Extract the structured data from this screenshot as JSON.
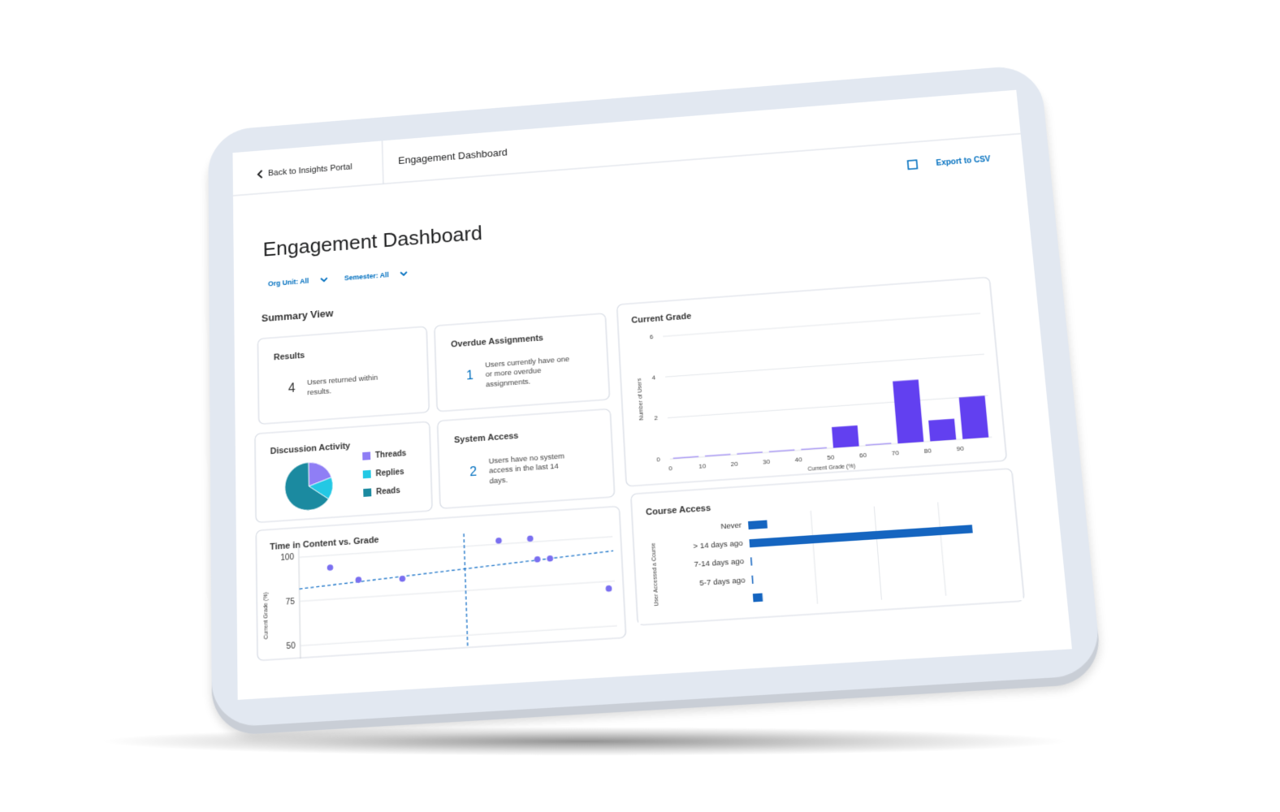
{
  "header": {
    "back": "Back to Insights Portal",
    "title": "Engagement Dashboard",
    "export": "Export to CSV"
  },
  "page": {
    "title": "Engagement Dashboard",
    "filters": [
      "Org Unit: All",
      "Semester: All"
    ],
    "section": "Summary View"
  },
  "cards": [
    {
      "title": "Results",
      "value": 4,
      "text": [
        "Users returned within",
        "results."
      ]
    },
    {
      "title": "Overdue Assignments",
      "value": 1,
      "text": [
        "Users currently have one",
        "or more overdue",
        "assignments."
      ]
    },
    {
      "title": "System Access",
      "value": 2,
      "text": [
        "Users have no system",
        "access in the last 14",
        "days."
      ]
    }
  ],
  "current_grade": {
    "type": "histogram",
    "title": "Current Grade",
    "x_label": "Current Grade (%)",
    "y_label": "Number of Users",
    "bins": [
      0,
      10,
      20,
      30,
      40,
      50,
      60,
      70,
      80,
      90,
      100
    ],
    "values": [
      0,
      0,
      0,
      0,
      0,
      1,
      0,
      3,
      1,
      2
    ],
    "xlim": [
      0,
      100
    ],
    "xticks": [
      0,
      10,
      20,
      30,
      40,
      50,
      60,
      70,
      80,
      90
    ],
    "ylim": [
      0,
      6
    ],
    "yticks": [
      0,
      2,
      4,
      6
    ],
    "color": "#6240f0",
    "grid": true
  },
  "discussion": {
    "type": "pie",
    "title": "Discussion Activity",
    "categories": [
      "Threads",
      "Replies",
      "Reads"
    ],
    "values": [
      20,
      15,
      65
    ],
    "colors": [
      "#8f7ef5",
      "#23c8e4",
      "#1b8aa0"
    ]
  },
  "time_vs_grade": {
    "type": "scatter",
    "title": "Time in Content vs. Grade",
    "y_label": "Current Grade (%)",
    "x": [
      10,
      19,
      33,
      64,
      74,
      76,
      80,
      98
    ],
    "values": [
      93,
      85,
      84,
      102,
      102,
      90,
      90,
      71
    ],
    "xlim": [
      0,
      100
    ],
    "ylim": [
      45,
      105
    ],
    "yticks": [
      50,
      75,
      100
    ],
    "trend": [
      82,
      92
    ],
    "mean_x": 53,
    "color": "#7a6ff0",
    "line_color": "#1a73c8",
    "grid": true
  },
  "course_access": {
    "type": "hbar",
    "title": "Course Access",
    "y_label": "User Accessed a Course",
    "categories": [
      "Never",
      "> 14 days ago",
      "7-14 days ago",
      "5-7 days ago",
      null
    ],
    "values": [
      0.3,
      3.5,
      0,
      0,
      0.15
    ],
    "xlim": [
      0,
      4
    ],
    "xgrid": [
      1,
      2,
      3
    ],
    "color": "#1565c0",
    "grid": true
  }
}
